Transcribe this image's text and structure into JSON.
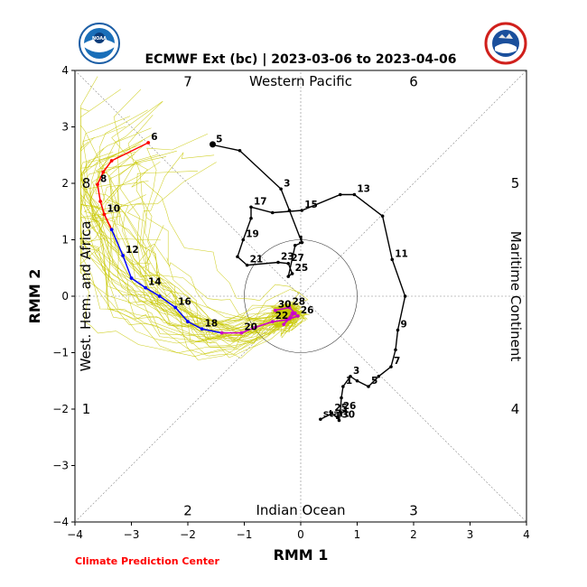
{
  "title": "ECMWF Ext (bc) | 2023-03-06 to 2023-04-06",
  "footer": "Climate Prediction Center",
  "logos": {
    "left": "noaa-logo",
    "right": "national-weather-service-logo"
  },
  "chart_data": {
    "type": "scatter",
    "xlabel": "RMM 1",
    "ylabel": "RMM 2",
    "xlim": [
      -4,
      4
    ],
    "ylim": [
      -4,
      4
    ],
    "xticks": [
      "−4",
      "−3",
      "−2",
      "−1",
      "0",
      "1",
      "2",
      "3",
      "4"
    ],
    "yticks": [
      "−4",
      "−3",
      "−2",
      "−1",
      "0",
      "1",
      "2",
      "3",
      "4"
    ],
    "unit_circle_radius": 1,
    "region_labels": {
      "top": "Western Pacific",
      "bottom": "Indian Ocean",
      "left": "West. Hem. and Africa",
      "right": "Maritime Continent"
    },
    "phase_labels": [
      {
        "label": "7",
        "x": -2,
        "y": 3.8
      },
      {
        "label": "6",
        "x": 2,
        "y": 3.8
      },
      {
        "label": "8",
        "x": -3.8,
        "y": 2
      },
      {
        "label": "5",
        "x": 3.8,
        "y": 2
      },
      {
        "label": "1",
        "x": -3.8,
        "y": -2
      },
      {
        "label": "4",
        "x": 3.8,
        "y": -2
      },
      {
        "label": "2",
        "x": -2,
        "y": -3.8
      },
      {
        "label": "3",
        "x": 2,
        "y": -3.8
      }
    ],
    "colors": {
      "observed": "#000000",
      "mean_early": "#cc00cc",
      "mean_mid": "#0000ff",
      "mean_late": "#ff0000",
      "ensemble": "#c8c800",
      "labels": "#000000",
      "footer": "#ff0000"
    },
    "series": [
      {
        "role": "observed",
        "points": [
          {
            "x": 0.35,
            "y": -2.18,
            "label": "start"
          },
          {
            "x": 0.55,
            "y": -2.08,
            "label": "25"
          },
          {
            "x": 0.65,
            "y": -2.15,
            "label": ""
          },
          {
            "x": 0.68,
            "y": -2.2,
            "label": "30"
          },
          {
            "x": 0.7,
            "y": -2.05,
            "label": "26"
          },
          {
            "x": 0.72,
            "y": -1.8,
            "label": ""
          },
          {
            "x": 0.75,
            "y": -1.6,
            "label": "1"
          },
          {
            "x": 0.88,
            "y": -1.42,
            "label": "3"
          },
          {
            "x": 1.0,
            "y": -1.5,
            "label": ""
          },
          {
            "x": 1.2,
            "y": -1.6,
            "label": "5"
          },
          {
            "x": 1.38,
            "y": -1.42,
            "label": ""
          },
          {
            "x": 1.6,
            "y": -1.25,
            "label": "7"
          },
          {
            "x": 1.68,
            "y": -0.95,
            "label": ""
          },
          {
            "x": 1.72,
            "y": -0.6,
            "label": "9"
          },
          {
            "x": 1.85,
            "y": 0.0,
            "label": ""
          },
          {
            "x": 1.62,
            "y": 0.65,
            "label": "11"
          },
          {
            "x": 1.45,
            "y": 1.42,
            "label": ""
          },
          {
            "x": 0.95,
            "y": 1.8,
            "label": "13"
          },
          {
            "x": 0.7,
            "y": 1.8,
            "label": ""
          },
          {
            "x": 0.02,
            "y": 1.52,
            "label": "15"
          },
          {
            "x": -0.5,
            "y": 1.48,
            "label": ""
          },
          {
            "x": -0.88,
            "y": 1.58,
            "label": "17"
          },
          {
            "x": -0.88,
            "y": 1.38,
            "label": ""
          },
          {
            "x": -1.02,
            "y": 1.0,
            "label": "19"
          },
          {
            "x": -1.12,
            "y": 0.7,
            "label": ""
          },
          {
            "x": -0.95,
            "y": 0.55,
            "label": "21"
          },
          {
            "x": -0.4,
            "y": 0.6,
            "label": "23"
          },
          {
            "x": -0.22,
            "y": 0.58,
            "label": "27"
          },
          {
            "x": -0.15,
            "y": 0.4,
            "label": "25"
          },
          {
            "x": -0.22,
            "y": 0.35,
            "label": ""
          },
          {
            "x": -0.1,
            "y": 0.9,
            "label": "1"
          },
          {
            "x": 0.02,
            "y": 0.95,
            "label": ""
          },
          {
            "x": -0.2,
            "y": 1.52,
            "label": ""
          },
          {
            "x": -0.35,
            "y": 1.9,
            "label": "3"
          },
          {
            "x": -1.08,
            "y": 2.58,
            "label": ""
          },
          {
            "x": -1.55,
            "y": 2.68,
            "label": "5"
          },
          {
            "x": -1.56,
            "y": 2.69,
            "label": ""
          }
        ]
      },
      {
        "role": "forecast-mean",
        "points": [
          {
            "x": -0.45,
            "y": -0.25,
            "label": "30"
          },
          {
            "x": -0.2,
            "y": -0.2,
            "label": "28"
          },
          {
            "x": -0.1,
            "y": -0.3,
            "label": ""
          },
          {
            "x": -0.2,
            "y": -0.4,
            "label": ""
          },
          {
            "x": -0.3,
            "y": -0.5,
            "label": ""
          },
          {
            "x": -0.15,
            "y": -0.3,
            "label": ""
          },
          {
            "x": -0.05,
            "y": -0.35,
            "label": "26"
          },
          {
            "x": -0.25,
            "y": -0.42,
            "label": ""
          },
          {
            "x": -0.5,
            "y": -0.45,
            "label": "22"
          },
          {
            "x": -0.8,
            "y": -0.55,
            "label": ""
          },
          {
            "x": -1.05,
            "y": -0.65,
            "label": "20"
          },
          {
            "x": -1.4,
            "y": -0.65,
            "label": ""
          },
          {
            "x": -1.75,
            "y": -0.58,
            "label": "18"
          },
          {
            "x": -2.0,
            "y": -0.45,
            "label": ""
          },
          {
            "x": -2.22,
            "y": -0.2,
            "label": "16"
          },
          {
            "x": -2.5,
            "y": 0.0,
            "label": ""
          },
          {
            "x": -2.75,
            "y": 0.15,
            "label": "14"
          },
          {
            "x": -3.0,
            "y": 0.32,
            "label": ""
          },
          {
            "x": -3.15,
            "y": 0.72,
            "label": "12"
          },
          {
            "x": -3.35,
            "y": 1.18,
            "label": ""
          },
          {
            "x": -3.48,
            "y": 1.45,
            "label": "10"
          },
          {
            "x": -3.55,
            "y": 1.68,
            "label": ""
          },
          {
            "x": -3.6,
            "y": 1.98,
            "label": "8"
          },
          {
            "x": -3.5,
            "y": 2.2,
            "label": ""
          },
          {
            "x": -3.35,
            "y": 2.4,
            "label": ""
          },
          {
            "x": -2.7,
            "y": 2.72,
            "label": "6"
          }
        ]
      }
    ]
  }
}
